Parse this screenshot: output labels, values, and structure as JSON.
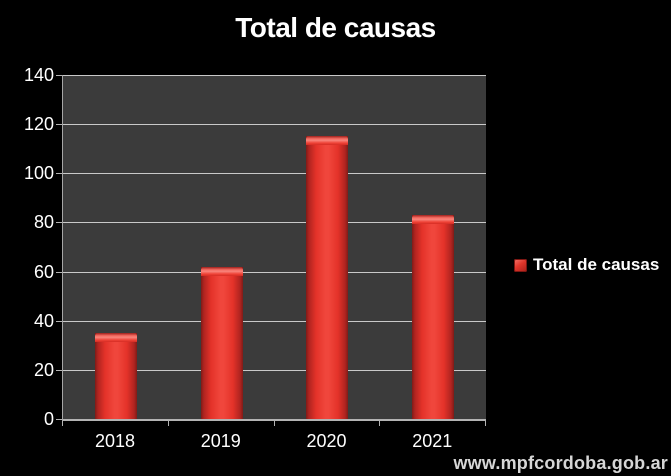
{
  "chart": {
    "title": "Total de causas",
    "legend": "Total de causas"
  },
  "footer": {
    "watermark": "www.mpfcordoba.gob.ar"
  },
  "chart_data": {
    "type": "bar",
    "title": "Total de causas",
    "categories": [
      "2018",
      "2019",
      "2020",
      "2021"
    ],
    "series": [
      {
        "name": "Total de causas",
        "values": [
          35,
          62,
          115,
          83
        ]
      }
    ],
    "xlabel": "",
    "ylabel": "",
    "ylim": [
      0,
      140
    ],
    "ytick_step": 20,
    "grid": true,
    "legend_position": "right",
    "colors": {
      "background": "#000000",
      "plot_background": "#3b3b3b",
      "gridline": "#c9c9c9",
      "bar": "#e43229",
      "text": "#ffffff",
      "watermark": "#d6d6d6"
    }
  }
}
